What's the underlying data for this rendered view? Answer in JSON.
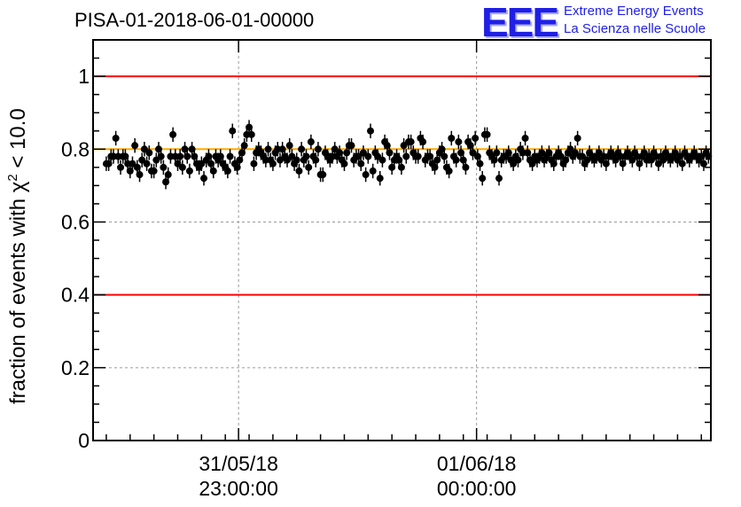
{
  "title": "PISA-01-2018-06-01-00000",
  "logo": {
    "text": "EEE",
    "line1": "Extreme Energy Events",
    "line2": "La Scienza nelle Scuole",
    "color": "#1f1fe6"
  },
  "chart_data": {
    "type": "scatter",
    "ylabel_prefix": "fraction of events with ",
    "ylabel_symbol": "χ",
    "ylabel_exp": "2",
    "ylabel_suffix": " < 10.0",
    "xlabel": "",
    "ylim": [
      0,
      1.1
    ],
    "yticks": [
      0,
      0.2,
      0.4,
      0.6,
      0.8,
      1
    ],
    "ytick_labels": [
      "0",
      "0.2",
      "0.4",
      "0.6",
      "0.8",
      "1"
    ],
    "xlim": [
      -0.0556,
      2.54
    ],
    "xticks": [
      0.5556,
      1.5556
    ],
    "xtick_labels": [
      [
        "31/05/18",
        "23:00:00"
      ],
      [
        "01/06/18",
        "00:00:00"
      ]
    ],
    "grid": true,
    "reference_lines": [
      {
        "y": 1.0,
        "color": "#ff0000"
      },
      {
        "y": 0.4,
        "color": "#ff0000"
      },
      {
        "y": 0.8,
        "color": "#ffaa00"
      }
    ],
    "marker_color": "#000000",
    "error": 0.02,
    "x_step": 0.01,
    "values": [
      0.76,
      0.76,
      0.78,
      0.78,
      0.83,
      0.78,
      0.75,
      0.78,
      0.78,
      0.76,
      0.74,
      0.76,
      0.81,
      0.75,
      0.73,
      0.77,
      0.8,
      0.76,
      0.79,
      0.74,
      0.74,
      0.77,
      0.8,
      0.78,
      0.75,
      0.71,
      0.73,
      0.78,
      0.84,
      0.78,
      0.76,
      0.78,
      0.75,
      0.8,
      0.78,
      0.74,
      0.8,
      0.78,
      0.76,
      0.75,
      0.76,
      0.72,
      0.77,
      0.78,
      0.76,
      0.74,
      0.78,
      0.77,
      0.78,
      0.76,
      0.75,
      0.74,
      0.78,
      0.85,
      0.76,
      0.75,
      0.77,
      0.79,
      0.81,
      0.84,
      0.86,
      0.84,
      0.76,
      0.79,
      0.8,
      0.79,
      0.78,
      0.77,
      0.8,
      0.77,
      0.76,
      0.79,
      0.8,
      0.77,
      0.8,
      0.78,
      0.77,
      0.81,
      0.78,
      0.76,
      0.77,
      0.74,
      0.8,
      0.77,
      0.78,
      0.75,
      0.82,
      0.78,
      0.77,
      0.8,
      0.73,
      0.73,
      0.79,
      0.78,
      0.77,
      0.78,
      0.8,
      0.78,
      0.79,
      0.77,
      0.76,
      0.79,
      0.81,
      0.81,
      0.77,
      0.78,
      0.78,
      0.76,
      0.79,
      0.73,
      0.78,
      0.85,
      0.74,
      0.79,
      0.78,
      0.72,
      0.77,
      0.82,
      0.81,
      0.79,
      0.75,
      0.77,
      0.78,
      0.77,
      0.75,
      0.81,
      0.78,
      0.82,
      0.82,
      0.79,
      0.78,
      0.78,
      0.83,
      0.82,
      0.77,
      0.78,
      0.78,
      0.76,
      0.75,
      0.77,
      0.79,
      0.8,
      0.78,
      0.75,
      0.74,
      0.83,
      0.78,
      0.77,
      0.82,
      0.79,
      0.77,
      0.75,
      0.82,
      0.81,
      0.79,
      0.83,
      0.78,
      0.76,
      0.72,
      0.84,
      0.84,
      0.79,
      0.78,
      0.77,
      0.79,
      0.72,
      0.77,
      0.78,
      0.78,
      0.79,
      0.77,
      0.76,
      0.78,
      0.77,
      0.8,
      0.79,
      0.83,
      0.79,
      0.77,
      0.76,
      0.78,
      0.77,
      0.78,
      0.79,
      0.77,
      0.78,
      0.79,
      0.77,
      0.76,
      0.78,
      0.79,
      0.78,
      0.76,
      0.77,
      0.79,
      0.8,
      0.78,
      0.79,
      0.83,
      0.78,
      0.78,
      0.76,
      0.77,
      0.79,
      0.78,
      0.77,
      0.78,
      0.79,
      0.77,
      0.78,
      0.76,
      0.78,
      0.79,
      0.78,
      0.77,
      0.79,
      0.78,
      0.76,
      0.78,
      0.79,
      0.78,
      0.77,
      0.79,
      0.78,
      0.76,
      0.78,
      0.79,
      0.77,
      0.78,
      0.77,
      0.79,
      0.78,
      0.76,
      0.78,
      0.77,
      0.79,
      0.78,
      0.77,
      0.78,
      0.79,
      0.77,
      0.78,
      0.76,
      0.79,
      0.78,
      0.77,
      0.78,
      0.79,
      0.78,
      0.77,
      0.78,
      0.76,
      0.79,
      0.78
    ]
  }
}
